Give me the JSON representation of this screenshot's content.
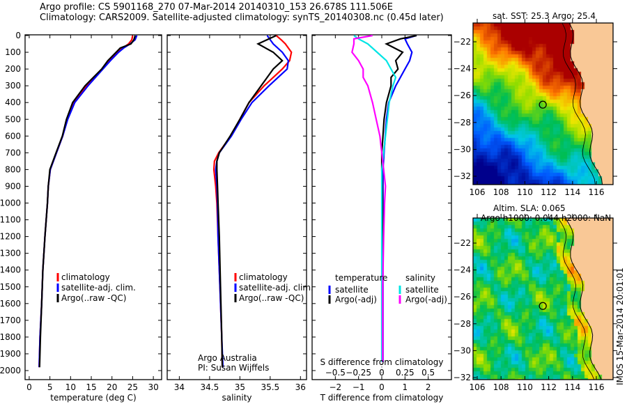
{
  "title_line1": "Argo profile: CS 5901168_270 07-Mar-2014 20140310_153 26.678S 111.506E",
  "title_line2": "Climatology: CARS2009. Satellite-adjusted climatology: synTS_20140308.nc (0.45d later)",
  "credit": "Argo Australia",
  "pi": "PI: Susan Wijffels",
  "stamp": "IMOS 15-Mar-2014 20:01:01",
  "colors": {
    "climatology": "#ff0000",
    "satellite": "#0000ff",
    "argo": "#000000",
    "s_satellite": "#00e5e5",
    "s_argo": "#ff00ff",
    "land": "#f9c896"
  },
  "chart_data": [
    {
      "type": "line",
      "title": "",
      "xlabel": "temperature (deg C)",
      "ylabel": "",
      "xlim": [
        -1,
        32
      ],
      "ylim": [
        2055,
        0
      ],
      "xticks": [
        0,
        5,
        10,
        15,
        20,
        25,
        30
      ],
      "yticks": [
        0,
        100,
        200,
        300,
        400,
        500,
        600,
        700,
        800,
        900,
        1000,
        1100,
        1200,
        1300,
        1400,
        1500,
        1600,
        1700,
        1800,
        1900,
        2000
      ],
      "legend": [
        "climatology",
        "satellite-adj. clim.",
        "Argo(..raw -QC)"
      ],
      "legend_placement": "lower-right",
      "depth": [
        0,
        25,
        50,
        75,
        100,
        150,
        200,
        300,
        400,
        500,
        600,
        700,
        800,
        900,
        1000,
        1200,
        1400,
        1600,
        1800,
        1980
      ],
      "series": [
        {
          "name": "climatology",
          "values": [
            25.0,
            24.8,
            24.0,
            22.6,
            21.4,
            19.4,
            17.6,
            13.8,
            10.8,
            9.2,
            8.1,
            6.6,
            5.1,
            4.6,
            4.4,
            3.8,
            3.3,
            3.0,
            2.6,
            2.4
          ]
        },
        {
          "name": "satellite-adj. clim.",
          "values": [
            26.0,
            25.6,
            24.4,
            22.8,
            21.6,
            19.6,
            17.8,
            14.2,
            11.0,
            9.3,
            8.1,
            6.6,
            5.1,
            4.6,
            4.4,
            3.8,
            3.3,
            3.0,
            2.6,
            2.4
          ]
        },
        {
          "name": "Argo(..raw -QC)",
          "values": [
            25.6,
            25.3,
            24.6,
            22.0,
            21.0,
            19.0,
            17.5,
            13.5,
            10.5,
            9.0,
            8.0,
            6.5,
            5.0,
            4.6,
            4.4,
            3.8,
            3.3,
            3.0,
            2.7,
            2.5
          ]
        }
      ]
    },
    {
      "type": "line",
      "xlabel": "salinity",
      "xlim": [
        33.8,
        36.1
      ],
      "ylim": [
        2055,
        0
      ],
      "xticks": [
        34,
        34.5,
        35,
        35.5,
        36
      ],
      "legend": [
        "climatology",
        "satellite-adj. clim.",
        "Argo(..raw -QC)"
      ],
      "legend_placement": "lower-right",
      "depth": [
        0,
        25,
        50,
        100,
        150,
        200,
        300,
        400,
        500,
        600,
        700,
        750,
        800,
        900,
        1000,
        1200,
        1500,
        1800,
        1980
      ],
      "series": [
        {
          "name": "climatology",
          "values": [
            35.6,
            35.68,
            35.75,
            35.85,
            35.82,
            35.7,
            35.4,
            35.15,
            35.0,
            34.85,
            34.65,
            34.58,
            34.57,
            34.6,
            34.62,
            34.64,
            34.67,
            34.7,
            34.71
          ]
        },
        {
          "name": "satellite-adj. clim.",
          "values": [
            35.45,
            35.5,
            35.55,
            35.7,
            35.8,
            35.78,
            35.48,
            35.2,
            35.02,
            34.86,
            34.66,
            34.62,
            34.6,
            34.62,
            34.63,
            34.64,
            34.67,
            34.7,
            34.72
          ]
        },
        {
          "name": "Argo(..raw -QC)",
          "values": [
            35.6,
            35.45,
            35.3,
            35.55,
            35.7,
            35.55,
            35.35,
            35.15,
            35.0,
            34.84,
            34.66,
            34.62,
            34.62,
            34.63,
            34.64,
            34.66,
            34.68,
            34.7,
            34.71
          ]
        }
      ]
    },
    {
      "type": "line",
      "xlabel": "T difference from climatology",
      "xlabel2": "S difference from climatology",
      "xlim": [
        -3,
        3
      ],
      "ylim": [
        2055,
        0
      ],
      "xticks": [
        -2,
        -1,
        0,
        1,
        2
      ],
      "xticks2": [
        -0.5,
        -0.25,
        0,
        0.25,
        0.5
      ],
      "legend_headers": [
        "temperature",
        "salinity"
      ],
      "legend": [
        "satellite",
        "Argo(-adj)",
        "satellite",
        "Argo(-adj)"
      ],
      "legend_placement": "lower-center",
      "depth": [
        0,
        20,
        50,
        100,
        150,
        200,
        250,
        300,
        400,
        500,
        600,
        700,
        800,
        900,
        1000,
        1200,
        1500,
        1800,
        1950
      ],
      "series": [
        {
          "name": "T satellite",
          "units": "degC",
          "values": [
            1.5,
            1.0,
            1.1,
            1.3,
            1.2,
            1.0,
            0.8,
            0.6,
            0.3,
            0.2,
            0.15,
            0.1,
            0.05,
            0.05,
            0.05,
            0.05,
            0.05,
            0.05,
            0.05
          ]
        },
        {
          "name": "T Argo(-adj)",
          "units": "degC",
          "values": [
            1.5,
            0.8,
            0.2,
            0.9,
            0.6,
            0.7,
            0.4,
            0.4,
            0.2,
            0.1,
            0.05,
            0.0,
            0.0,
            0.02,
            0.03,
            0.03,
            0.03,
            0.03,
            0.03
          ]
        },
        {
          "name": "S satellite",
          "units": "psu",
          "values": [
            -0.3,
            -0.25,
            -0.15,
            -0.05,
            0.05,
            0.1,
            0.15,
            0.12,
            0.08,
            0.06,
            0.04,
            0.02,
            0.0,
            0.0,
            0.0,
            0.0,
            0.0,
            0.0,
            0.0
          ]
        },
        {
          "name": "S Argo(-adj)",
          "units": "psu",
          "values": [
            -0.1,
            -0.3,
            -0.3,
            -0.32,
            -0.25,
            -0.2,
            -0.2,
            -0.15,
            -0.1,
            -0.06,
            -0.02,
            0.0,
            0.02,
            0.04,
            0.03,
            0.02,
            0.01,
            0.01,
            0.01
          ]
        }
      ]
    },
    {
      "type": "heatmap",
      "title": "sat. SST: 25.3 Argo: 25.4",
      "xticks": [
        106,
        108,
        110,
        112,
        114,
        116
      ],
      "yticks": [
        -22,
        -24,
        -26,
        -28,
        -30,
        -32
      ],
      "marker": {
        "lon": 111.506,
        "lat": -26.678
      }
    },
    {
      "type": "heatmap",
      "title": "Altim. SLA: 0.065",
      "subtitle": "Argo h1000: 0.044 h2000: NaN",
      "xticks": [
        106,
        108,
        110,
        112,
        114,
        116
      ],
      "yticks": [
        -22,
        -24,
        -26,
        -28,
        -30,
        -32
      ],
      "marker": {
        "lon": 111.506,
        "lat": -26.678
      }
    }
  ]
}
